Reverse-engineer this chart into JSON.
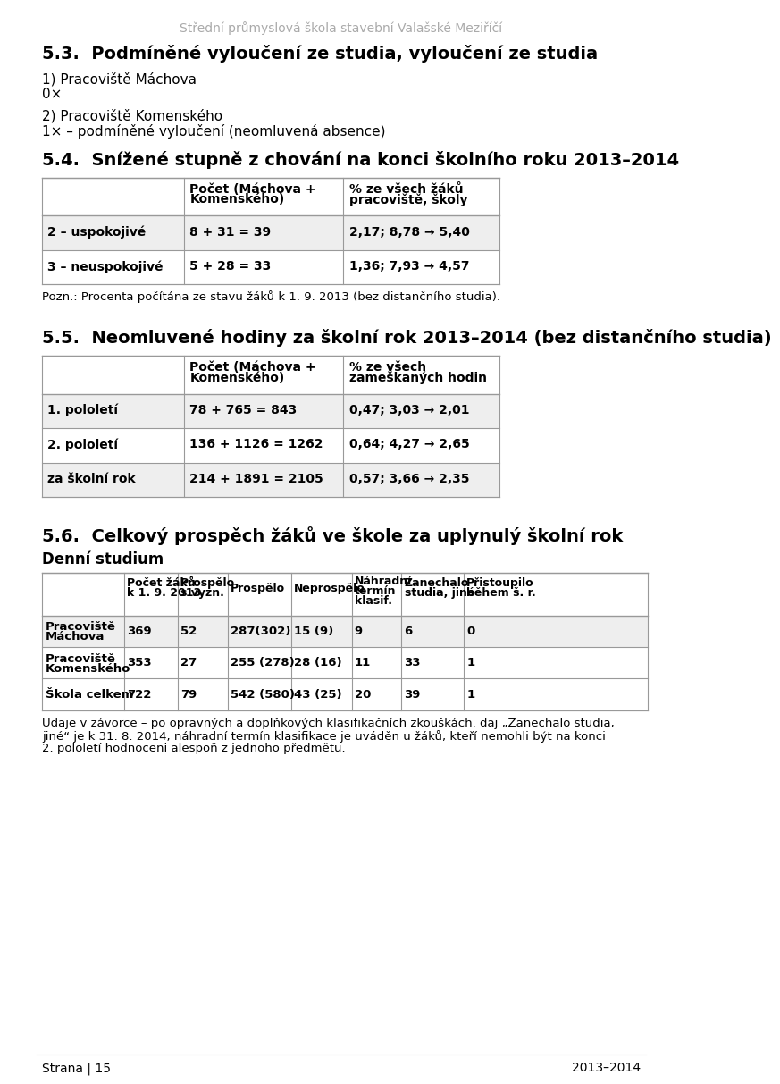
{
  "header_text": "Střední průmyslová škola stavební Valašské Meziříčí",
  "section53_title": "5.3.  Podmíněné vyloučení ze studia, vyloučení ze studia",
  "section53_lines": [
    "1) Pracoviště Máchova",
    "0×",
    "",
    "2) Pracoviště Komenského",
    "1× – podmíněné vyloučení (neomluvená absence)"
  ],
  "section54_title": "5.4.  Snížené stupně z chování na konci školního roku 2013–2014",
  "table54_header1": "Počet (Máchova +",
  "table54_header1b": "Komenského)",
  "table54_header2": "% ze všech žáků",
  "table54_header2b": "pracoviště, školy",
  "table54_row1_label": "2 – uspokojivé",
  "table54_row1_col1": "8 + 31 = 39",
  "table54_row1_col2": "2,17; 8,78 → 5,40",
  "table54_row2_label": "3 – neuspokojivé",
  "table54_row2_col1": "5 + 28 = 33",
  "table54_row2_col2": "1,36; 7,93 → 4,57",
  "note54": "Pozn.: Procenta počítána ze stavu žáků k 1. 9. 2013 (bez distančního studia).",
  "section55_title": "5.5.  Neomluvené hodiny za školní rok 2013–2014 (bez distančního studia)",
  "table55_header1": "Počet (Máchova +",
  "table55_header1b": "Komenského)",
  "table55_header2": "% ze všech",
  "table55_header2b": "zameškaných hodin",
  "table55_row1_label": "1. pololetí",
  "table55_row1_col1": "78 + 765 = 843",
  "table55_row1_col2": "0,47; 3,03 → 2,01",
  "table55_row2_label": "2. pololetí",
  "table55_row2_col1": "136 + 1126 = 1262",
  "table55_row2_col2": "0,64; 4,27 → 2,65",
  "table55_row3_label": "za školní rok",
  "table55_row3_col1": "214 + 1891 = 2105",
  "table55_row3_col2": "0,57; 3,66 → 2,35",
  "section56_title": "5.6.  Celkový prospěch žáků ve škole za uplynulý školní rok",
  "section56_subtitle": "Denní studium",
  "t56h0": "",
  "t56h1a": "Počet žáků",
  "t56h1b": "k 1. 9. 2013",
  "t56h2a": "Prospělo",
  "t56h2b": "s vyzn.",
  "t56h3": "Prospělo",
  "t56h4": "Neprospělo",
  "t56h5a": "Náhradní",
  "t56h5b": "termín",
  "t56h5c": "klasif.",
  "t56h6a": "Zanechalo",
  "t56h6b": "studia, jiné",
  "t56h7a": "Přistoupilo",
  "t56h7b": "během š. r.",
  "t56r1c0a": "Pracoviště",
  "t56r1c0b": "Máchova",
  "t56r1c1": "369",
  "t56r1c2": "52",
  "t56r1c3": "287(302)",
  "t56r1c4": "15 (9)",
  "t56r1c5": "9",
  "t56r1c6": "6",
  "t56r1c7": "0",
  "t56r2c0a": "Pracoviště",
  "t56r2c0b": "Komenského",
  "t56r2c1": "353",
  "t56r2c2": "27",
  "t56r2c3": "255 (278)",
  "t56r2c4": "28 (16)",
  "t56r2c5": "11",
  "t56r2c6": "33",
  "t56r2c7": "1",
  "t56r3c0": "Škola celkem",
  "t56r3c1": "722",
  "t56r3c2": "79",
  "t56r3c3": "542 (580)",
  "t56r3c4": "43 (25)",
  "t56r3c5": "20",
  "t56r3c6": "39",
  "t56r3c7": "1",
  "note56a": "daje v závorce – po opravných a doplňkových klasifikačních zkouškách. daj „Zanechalo studia,",
  "note56b": "jiné“ je k 31. 8. 2014, náhradní termín klasifikace je uváděn u žáků, kteří nemohli být na konci",
  "note56c": "2. pololetí hodnoceni alespoň z jednoho předmětu.",
  "footer_left": "Strana | 15",
  "footer_right": "2013–2014",
  "bg_color": "#ffffff",
  "header_color": "#aaaaaa",
  "table_row_bg1": "#eeeeee",
  "table_row_bg2": "#ffffff",
  "table_border_color": "#999999"
}
